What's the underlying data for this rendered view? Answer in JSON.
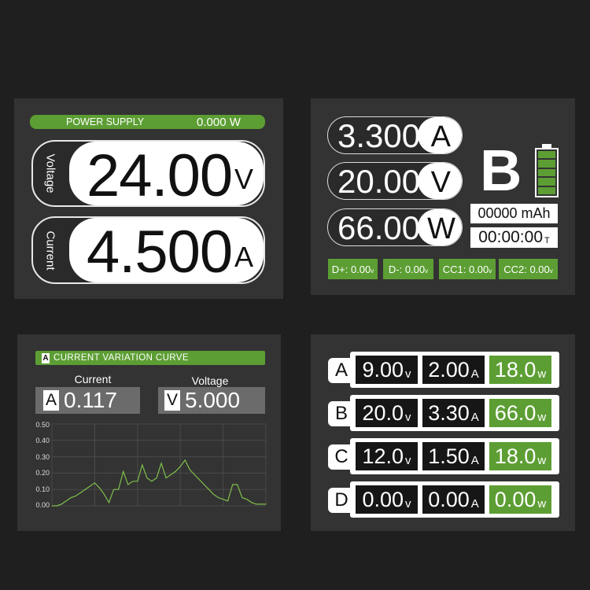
{
  "colors": {
    "background": "#1f1f1f",
    "panel": "#333333",
    "accent_green": "#5c9e33",
    "curve": "#7fbf4a"
  },
  "power_supply": {
    "title": "POWER SUPPLY",
    "power": "0.000 W",
    "voltage": {
      "label": "Voltage",
      "value": "24.00",
      "unit": "V"
    },
    "current": {
      "label": "Current",
      "value": "4.500",
      "unit": "A"
    }
  },
  "port_detail": {
    "port": "B",
    "battery_level": 1.0,
    "readings": [
      {
        "value": "3.300",
        "unit": "A"
      },
      {
        "value": "20.00",
        "unit": "V"
      },
      {
        "value": "66.00",
        "unit": "W"
      }
    ],
    "capacity": "00000 mAh",
    "time": "00:00:00",
    "time_suffix": "T",
    "data_lines": [
      {
        "label": "D+: 0.00",
        "unit": "v"
      },
      {
        "label": "D-: 0.00",
        "unit": "v"
      },
      {
        "label": "CC1: 0.00",
        "unit": "v"
      },
      {
        "label": "CC2: 0.00",
        "unit": "v"
      }
    ]
  },
  "curve_screen": {
    "badge": "A",
    "title": "CURRENT VARIATION CURVE",
    "current": {
      "label": "Current",
      "badge": "A",
      "value": "0.117"
    },
    "voltage": {
      "label": "Voltage",
      "badge": "V",
      "value": "5.000"
    }
  },
  "chart_data": {
    "type": "line",
    "ylim": [
      0,
      0.5
    ],
    "yticks": [
      "0.00",
      "0.10",
      "0.20",
      "0.30",
      "0.40",
      "0.50"
    ],
    "grid": true,
    "values": [
      0,
      0,
      0.01,
      0.03,
      0.05,
      0.06,
      0.08,
      0.1,
      0.12,
      0.14,
      0.11,
      0.07,
      0.02,
      0.1,
      0.1,
      0.21,
      0.13,
      0.15,
      0.15,
      0.25,
      0.17,
      0.15,
      0.17,
      0.26,
      0.17,
      0.19,
      0.21,
      0.24,
      0.28,
      0.22,
      0.19,
      0.16,
      0.13,
      0.1,
      0.07,
      0.05,
      0.04,
      0.03,
      0.13,
      0.13,
      0.05,
      0.04,
      0.02,
      0.01,
      0.01,
      0.01
    ]
  },
  "ports": [
    {
      "port": "A",
      "voltage": "9.00",
      "current": "2.00",
      "power": "18.0"
    },
    {
      "port": "B",
      "voltage": "20.0",
      "current": "3.30",
      "power": "66.0"
    },
    {
      "port": "C",
      "voltage": "12.0",
      "current": "1.50",
      "power": "18.0"
    },
    {
      "port": "D",
      "voltage": "0.00",
      "current": "0.00",
      "power": "0.00"
    }
  ],
  "units": {
    "v": "V",
    "a": "A",
    "w": "W",
    "sv": "v",
    "sa": "A",
    "sw": "w"
  }
}
